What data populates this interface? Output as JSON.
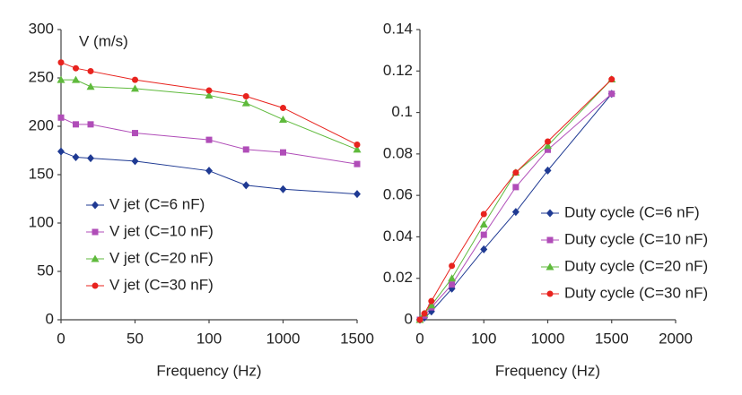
{
  "chart_data": [
    {
      "type": "line",
      "y_annotation": "V (m/s)",
      "x_label": "Frequency (Hz)",
      "x": [
        0,
        10,
        20,
        50,
        100,
        550,
        1000,
        1500
      ],
      "xlim": [
        0,
        1500
      ],
      "xticks": [
        0,
        50,
        100,
        1000,
        1500
      ],
      "xscale": "piecewise",
      "ylim": [
        0,
        300
      ],
      "yticks": [
        0,
        50,
        100,
        150,
        200,
        250,
        300
      ],
      "legend": "lower left",
      "series": [
        {
          "name": "V jet (C=6 nF)",
          "color": "#1f3a93",
          "marker": "diamond",
          "values": [
            174,
            168,
            167,
            164,
            154,
            139,
            135,
            130
          ]
        },
        {
          "name": "V jet (C=10 nF)",
          "color": "#b04db8",
          "marker": "square",
          "values": [
            209,
            202,
            202,
            193,
            186,
            176,
            173,
            161
          ]
        },
        {
          "name": "V jet (C=20 nF)",
          "color": "#5fba3c",
          "marker": "triangle",
          "values": [
            248,
            248,
            241,
            239,
            232,
            224,
            207,
            176
          ]
        },
        {
          "name": "V jet (C=30 nF)",
          "color": "#e8231e",
          "marker": "circle",
          "values": [
            266,
            260,
            257,
            248,
            237,
            231,
            219,
            181
          ]
        }
      ]
    },
    {
      "type": "line",
      "x_label": "Frequency (Hz)",
      "x": [
        0,
        7,
        18,
        50,
        100,
        550,
        1000,
        1500
      ],
      "xlim": [
        0,
        2000
      ],
      "xticks": [
        0,
        100,
        1000,
        1500,
        2000
      ],
      "xscale": "piecewise",
      "ylim": [
        0,
        0.14
      ],
      "yticks": [
        0,
        0.02,
        0.04,
        0.06,
        0.08,
        0.1,
        0.12,
        0.14
      ],
      "legend": "center right",
      "series": [
        {
          "name": "Duty cycle (C=6 nF)",
          "color": "#1f3a93",
          "marker": "diamond",
          "values": [
            0,
            0.001,
            0.004,
            0.015,
            0.034,
            0.052,
            0.072,
            0.109
          ]
        },
        {
          "name": "Duty cycle (C=10 nF)",
          "color": "#b04db8",
          "marker": "square",
          "values": [
            0,
            0.002,
            0.006,
            0.017,
            0.041,
            0.064,
            0.082,
            0.109
          ]
        },
        {
          "name": "Duty cycle (C=20 nF)",
          "color": "#5fba3c",
          "marker": "triangle",
          "values": [
            0,
            0.003,
            0.007,
            0.02,
            0.046,
            0.071,
            0.084,
            0.116
          ]
        },
        {
          "name": "Duty cycle (C=30 nF)",
          "color": "#e8231e",
          "marker": "circle",
          "values": [
            0,
            0.003,
            0.009,
            0.026,
            0.051,
            0.071,
            0.086,
            0.116
          ]
        }
      ]
    }
  ]
}
